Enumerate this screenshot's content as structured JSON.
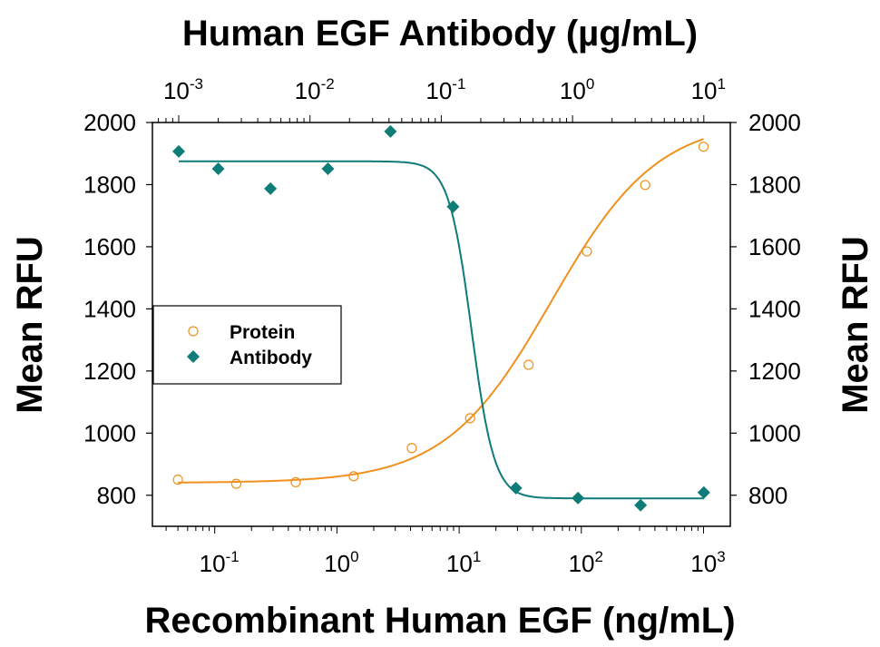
{
  "chart_data": {
    "type": "scatter",
    "top_title": "Human EGF Antibody (µg/mL)",
    "xlabel": "Recombinant Human EGF (ng/mL)",
    "ylabel_left": "Mean RFU",
    "ylabel_right": "Mean RFU",
    "ylim": [
      700,
      2000
    ],
    "yticks": [
      "800",
      "1000",
      "1200",
      "1400",
      "1600",
      "1800",
      "2000"
    ],
    "x_bottom": {
      "scale": "log",
      "range_ng_per_mL": [
        0.029,
        1350
      ],
      "ticks": [
        {
          "base": "10",
          "exp": "-1"
        },
        {
          "base": "10",
          "exp": "0"
        },
        {
          "base": "10",
          "exp": "1"
        },
        {
          "base": "10",
          "exp": "2"
        },
        {
          "base": "10",
          "exp": "3"
        }
      ]
    },
    "x_top": {
      "scale": "log",
      "ticks": [
        {
          "base": "10",
          "exp": "-3"
        },
        {
          "base": "10",
          "exp": "-2"
        },
        {
          "base": "10",
          "exp": "-1"
        },
        {
          "base": "10",
          "exp": "0"
        },
        {
          "base": "10",
          "exp": "1"
        }
      ]
    },
    "grid": false,
    "legend": {
      "placement": "center-left",
      "entries": [
        "Protein",
        "Antibody"
      ]
    },
    "series": [
      {
        "name": "Protein",
        "axis": "bottom",
        "color": "#F0901E",
        "marker": "open-circle",
        "x": [
          0.05,
          0.15,
          0.46,
          1.37,
          4.1,
          12.3,
          37,
          111,
          333,
          1000
        ],
        "y": [
          850,
          837,
          842,
          861,
          952,
          1048,
          1220,
          1585,
          1799,
          1922
        ],
        "fit": {
          "bottom": 840,
          "top": 2010,
          "ec50": 57,
          "hill": 1
        }
      },
      {
        "name": "Antibody",
        "axis": "top",
        "color": "#0E7C78",
        "marker": "filled-diamond",
        "x": [
          0.001,
          0.002,
          0.005,
          0.0137,
          0.041,
          0.123,
          0.37,
          1.1,
          3.3,
          10
        ],
        "y": [
          1907,
          1851,
          1787,
          1851,
          1971,
          1729,
          823,
          791,
          768,
          809
        ],
        "fit": {
          "bottom": 790,
          "top": 1875,
          "ic50": 0.17,
          "hill": 5
        }
      }
    ]
  }
}
